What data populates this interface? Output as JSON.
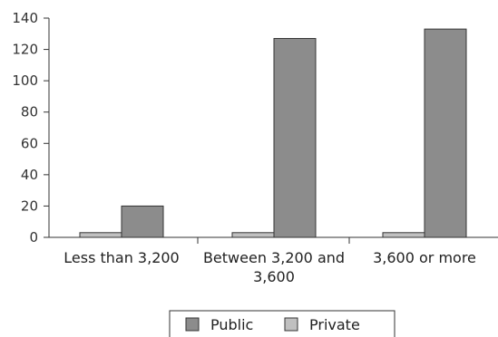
{
  "chart_data": {
    "type": "bar",
    "categories": [
      [
        "Less than 3,200"
      ],
      [
        "Between 3,200 and",
        "3,600"
      ],
      [
        "3,600 or more"
      ]
    ],
    "series": [
      {
        "name": "Private",
        "values": [
          3,
          3,
          3
        ],
        "color": "#c0c0c0"
      },
      {
        "name": "Public",
        "values": [
          20,
          127,
          133
        ],
        "color": "#8c8c8c"
      }
    ],
    "legend_order": [
      "Public",
      "Private"
    ],
    "ylim": [
      0,
      140
    ],
    "yticks": [
      0,
      20,
      40,
      60,
      80,
      100,
      120,
      140
    ],
    "title": "",
    "xlabel": "",
    "ylabel": "",
    "grid": false,
    "legend_position": "bottom-center"
  }
}
